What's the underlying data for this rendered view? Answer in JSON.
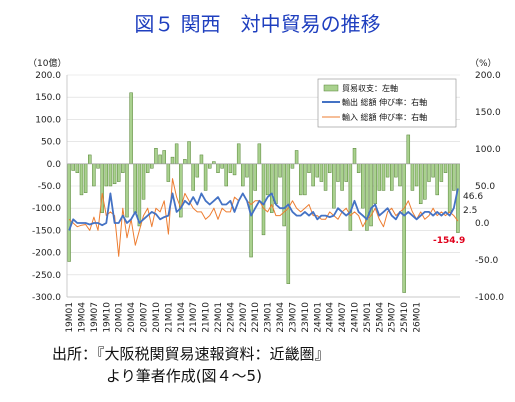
{
  "title": "図５ 関西　対中貿易の推移",
  "source_line1": "出所：『大阪税関貿易速報資料：近畿圏』",
  "source_line2": "より筆者作成(図４〜5)",
  "chart_data": {
    "type": "bar+line",
    "left_unit": "（10億）",
    "right_unit": "（%）",
    "ylim_left": [
      -300,
      200
    ],
    "ylim_right": [
      -100,
      200
    ],
    "left_ticks": [
      "200.0",
      "150.0",
      "100.0",
      "50.0",
      "0.0",
      "-50.0",
      "-100.0",
      "-150.0",
      "-200.0",
      "-250.0",
      "-300.0"
    ],
    "right_ticks": [
      "200.0",
      "150.0",
      "100.0",
      "50.0",
      "0.0",
      "-50.0",
      "-100.0"
    ],
    "x_tick_labels": [
      "19M01",
      "19M04",
      "19M07",
      "19M10",
      "20M01",
      "20M04",
      "20M07",
      "20M10",
      "21M01",
      "21M04",
      "21M07",
      "21M10",
      "22M01",
      "22M04",
      "22M07",
      "22M10",
      "23M01",
      "23M04",
      "23M07",
      "23M10",
      "24M01",
      "24M04",
      "24M07",
      "24M10",
      "25M01",
      "25M04",
      "25M07",
      "25M10",
      "26M01"
    ],
    "legend": [
      "貿易収支：左軸",
      "輸出 総額 伸び率：右軸",
      "輸入 総額 伸び率：右軸"
    ],
    "annotations": {
      "export_last": "46.6",
      "import_last": "2.5",
      "balance_last": "-154.9"
    },
    "colors": {
      "bar": "#a9d18e",
      "bar_edge": "#548235",
      "export": "#4472c4",
      "import": "#ed7d31",
      "balance_label": "#e0001b",
      "title": "#1f3fbf"
    },
    "balance": [
      -220,
      -15,
      -20,
      -70,
      -65,
      20,
      -50,
      -10,
      -110,
      -50,
      -50,
      -45,
      -40,
      -20,
      -120,
      160,
      -110,
      -140,
      -80,
      -20,
      -10,
      35,
      20,
      30,
      -40,
      15,
      45,
      -120,
      10,
      50,
      -60,
      -30,
      20,
      -60,
      -10,
      5,
      -20,
      -10,
      -50,
      -20,
      -25,
      45,
      -50,
      -30,
      -210,
      -60,
      45,
      -160,
      -70,
      -110,
      -90,
      -30,
      -140,
      -270,
      -10,
      30,
      -70,
      -70,
      -20,
      -50,
      -30,
      -40,
      -60,
      -20,
      -100,
      -40,
      -60,
      -40,
      -150,
      35,
      -20,
      -100,
      -150,
      -140,
      -90,
      -60,
      -60,
      -30,
      -60,
      -30,
      -50,
      -290,
      65,
      -60,
      -50,
      -90,
      -80,
      -40,
      -30,
      -70,
      -40,
      -20,
      -110,
      -60,
      -155
    ],
    "export_growth": [
      -10,
      5,
      0,
      0,
      0,
      -2,
      0,
      0,
      -3,
      0,
      40,
      0,
      0,
      10,
      0,
      5,
      15,
      0,
      5,
      10,
      15,
      12,
      5,
      8,
      10,
      40,
      15,
      20,
      30,
      25,
      35,
      25,
      40,
      30,
      25,
      30,
      35,
      25,
      25,
      30,
      15,
      30,
      40,
      30,
      10,
      20,
      30,
      25,
      35,
      40,
      25,
      20,
      20,
      25,
      15,
      10,
      10,
      15,
      10,
      15,
      5,
      10,
      10,
      8,
      10,
      20,
      15,
      10,
      15,
      30,
      15,
      10,
      5,
      20,
      25,
      10,
      15,
      20,
      10,
      5,
      15,
      10,
      15,
      10,
      5,
      10,
      15,
      15,
      10,
      15,
      10,
      15,
      10,
      20,
      46.6
    ],
    "import_growth": [
      5,
      0,
      -5,
      -3,
      -2,
      -10,
      8,
      -10,
      40,
      10,
      15,
      10,
      -45,
      20,
      -20,
      5,
      -30,
      -10,
      10,
      20,
      -5,
      20,
      15,
      30,
      -15,
      60,
      35,
      20,
      40,
      30,
      20,
      15,
      15,
      5,
      10,
      20,
      5,
      20,
      15,
      15,
      35,
      30,
      40,
      30,
      25,
      30,
      30,
      20,
      15,
      25,
      10,
      10,
      15,
      20,
      30,
      20,
      15,
      20,
      25,
      10,
      10,
      5,
      5,
      15,
      10,
      5,
      15,
      20,
      10,
      15,
      10,
      -5,
      5,
      10,
      20,
      5,
      -5,
      15,
      20,
      10,
      15,
      20,
      30,
      15,
      5,
      15,
      5,
      10,
      20,
      10,
      15,
      10,
      15,
      10,
      2.5
    ]
  }
}
